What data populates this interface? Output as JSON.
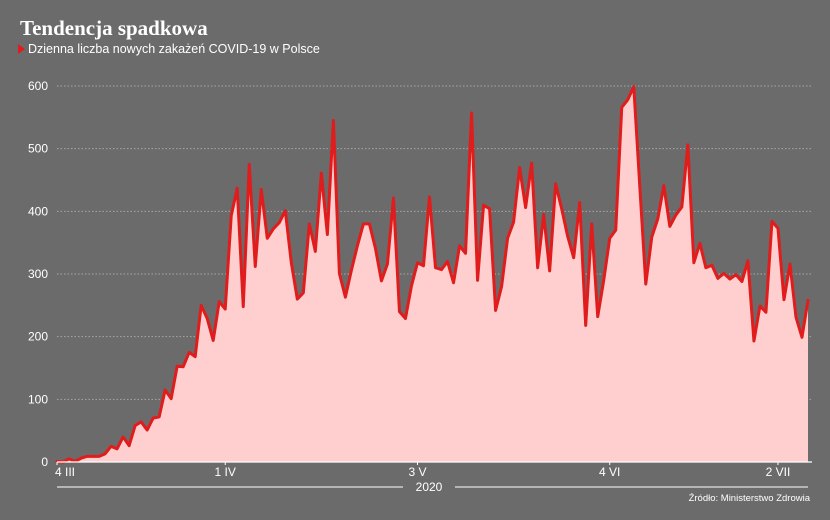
{
  "header": {
    "title": "Tendencja spadkowa",
    "subtitle": "Dzienna liczba nowych zakażeń COVID-19 w Polsce"
  },
  "footer": {
    "source": "Źródło: Ministerstwo Zdrowia"
  },
  "colors": {
    "background": "#6b6b6b",
    "line": "#e01c1c",
    "area": "#ffcfcf",
    "grid": "#a8a8a8"
  },
  "chart_data": {
    "type": "area",
    "title": "Tendencja spadkowa",
    "subtitle": "Dzienna liczba nowych zakażeń COVID-19 w Polsce",
    "xlabel": "2020",
    "ylabel": "",
    "ylim": [
      0,
      600
    ],
    "yticks": [
      0,
      100,
      200,
      300,
      400,
      500,
      600
    ],
    "xticks": [
      {
        "label": "4 III",
        "day": 0
      },
      {
        "label": "1 IV",
        "day": 28
      },
      {
        "label": "3 V",
        "day": 60
      },
      {
        "label": "4 VI",
        "day": 92
      },
      {
        "label": "2 VII",
        "day": 120
      }
    ],
    "grid": true,
    "legend": "none",
    "series": [
      {
        "values": [
          1,
          0,
          5,
          1,
          6,
          9,
          9,
          9,
          13,
          25,
          21,
          40,
          26,
          58,
          64,
          51,
          70,
          72,
          115,
          101,
          153,
          152,
          175,
          168,
          250,
          229,
          194,
          256,
          244,
          393,
          437,
          248,
          475,
          312,
          435,
          357,
          372,
          382,
          401,
          318,
          260,
          270,
          380,
          336,
          461,
          363,
          545,
          301,
          263,
          306,
          345,
          380,
          380,
          341,
          289,
          316,
          421,
          240,
          229,
          281,
          318,
          313,
          423,
          310,
          307,
          320,
          286,
          345,
          333,
          557,
          290,
          410,
          404,
          242,
          280,
          357,
          383,
          470,
          406,
          477,
          310,
          395,
          305,
          444,
          404,
          360,
          326,
          414,
          218,
          380,
          232,
          290,
          357,
          370,
          566,
          578,
          599,
          440,
          284,
          359,
          388,
          441,
          376,
          394,
          407,
          506,
          318,
          349,
          310,
          314,
          293,
          301,
          292,
          299,
          288,
          321,
          193,
          249,
          239,
          384,
          373,
          259,
          316,
          231,
          199,
          258
        ]
      }
    ]
  }
}
